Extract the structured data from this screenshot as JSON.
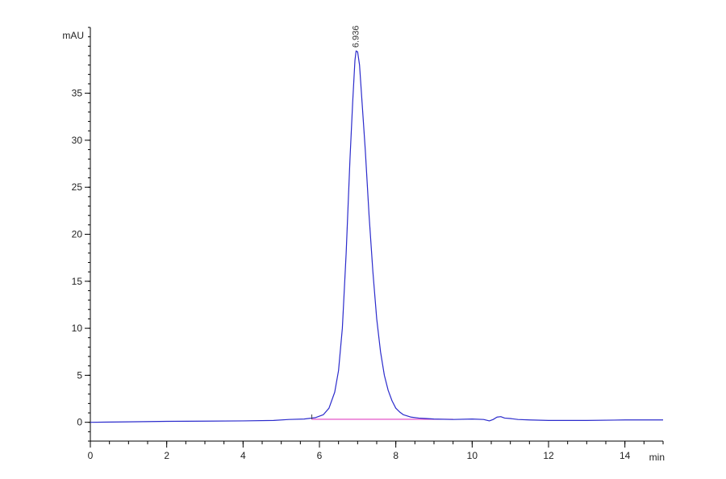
{
  "chart_data": {
    "type": "line",
    "title": "",
    "xlabel": "min",
    "ylabel": "mAU",
    "xlim": [
      0,
      15
    ],
    "ylim": [
      -2,
      42
    ],
    "x_ticks": [
      0,
      2,
      4,
      6,
      8,
      10,
      12,
      14
    ],
    "x_tick_labels": [
      "0",
      "2",
      "4",
      "6",
      "8",
      "10",
      "12",
      "14"
    ],
    "y_ticks": [
      0,
      5,
      10,
      15,
      20,
      25,
      30,
      35
    ],
    "y_tick_labels": [
      "0",
      "5",
      "10",
      "15",
      "20",
      "25",
      "30",
      "35"
    ],
    "grid": false,
    "legend": "none",
    "series": [
      {
        "color": "#2b2bcc",
        "x": [
          0.0,
          1.0,
          2.0,
          3.0,
          4.0,
          4.8,
          5.2,
          5.6,
          5.9,
          6.1,
          6.25,
          6.4,
          6.5,
          6.6,
          6.7,
          6.8,
          6.87,
          6.93,
          6.96,
          7.0,
          7.05,
          7.1,
          7.2,
          7.3,
          7.4,
          7.5,
          7.6,
          7.7,
          7.8,
          7.9,
          8.0,
          8.1,
          8.2,
          8.4,
          8.6,
          8.8,
          9.0,
          9.5,
          10.0,
          10.3,
          10.45,
          10.55,
          10.65,
          10.75,
          10.85,
          11.0,
          11.2,
          11.5,
          12.0,
          13.0,
          14.0,
          15.0
        ],
        "y": [
          0.0,
          0.05,
          0.1,
          0.12,
          0.15,
          0.2,
          0.3,
          0.35,
          0.5,
          0.8,
          1.5,
          3.2,
          5.5,
          10.0,
          18.0,
          28.0,
          34.0,
          38.5,
          39.5,
          39.4,
          38.0,
          35.0,
          29.0,
          22.0,
          16.0,
          11.0,
          7.5,
          5.0,
          3.4,
          2.3,
          1.5,
          1.1,
          0.8,
          0.55,
          0.45,
          0.4,
          0.35,
          0.3,
          0.35,
          0.3,
          0.15,
          0.3,
          0.55,
          0.6,
          0.45,
          0.4,
          0.3,
          0.25,
          0.2,
          0.2,
          0.25,
          0.25
        ]
      },
      {
        "color": "#e040c0",
        "x": [
          5.8,
          9.5
        ],
        "y": [
          0.32,
          0.32
        ]
      }
    ],
    "annotations": [
      {
        "text": "6.936",
        "x": 6.936,
        "y": 39.5
      }
    ]
  }
}
